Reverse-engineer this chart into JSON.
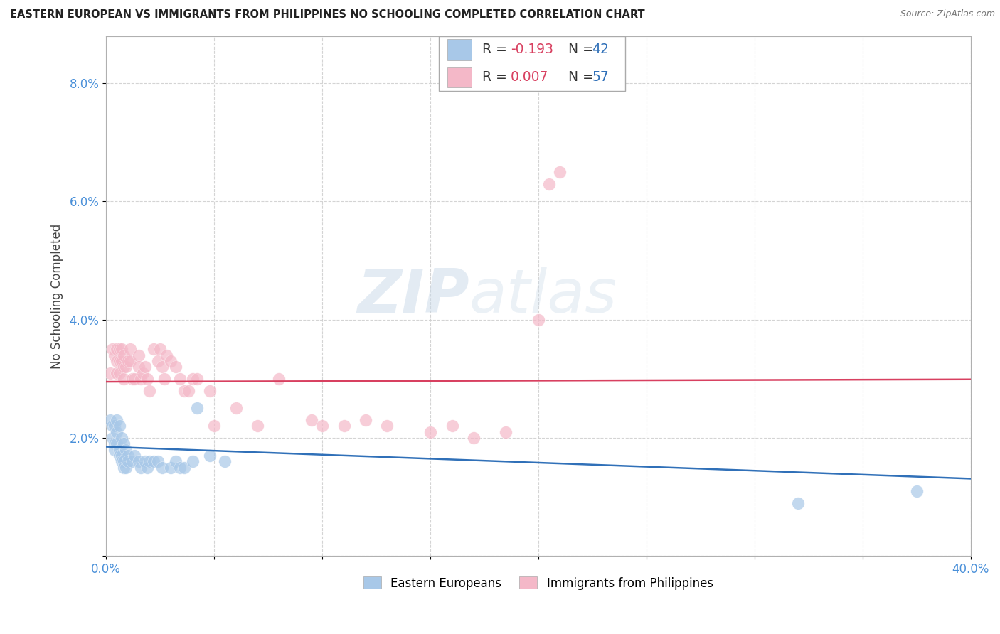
{
  "title": "EASTERN EUROPEAN VS IMMIGRANTS FROM PHILIPPINES NO SCHOOLING COMPLETED CORRELATION CHART",
  "source": "Source: ZipAtlas.com",
  "ylabel": "No Schooling Completed",
  "xlim": [
    0.0,
    0.4
  ],
  "ylim": [
    0.0,
    0.088
  ],
  "xticks": [
    0.0,
    0.05,
    0.1,
    0.15,
    0.2,
    0.25,
    0.3,
    0.35,
    0.4
  ],
  "xtick_labels": [
    "0.0%",
    "",
    "",
    "",
    "",
    "",
    "",
    "",
    "40.0%"
  ],
  "yticks": [
    0.0,
    0.02,
    0.04,
    0.06,
    0.08
  ],
  "ytick_labels": [
    "",
    "2.0%",
    "4.0%",
    "6.0%",
    "8.0%"
  ],
  "blue_color": "#a8c8e8",
  "pink_color": "#f4b8c8",
  "blue_line_color": "#3070b8",
  "pink_line_color": "#d84060",
  "watermark_zip": "ZIP",
  "watermark_atlas": "atlas",
  "background_color": "#ffffff",
  "grid_color": "#d0d0d0",
  "blue_points": [
    [
      0.002,
      0.023
    ],
    [
      0.003,
      0.022
    ],
    [
      0.003,
      0.02
    ],
    [
      0.004,
      0.022
    ],
    [
      0.004,
      0.019
    ],
    [
      0.004,
      0.018
    ],
    [
      0.005,
      0.023
    ],
    [
      0.005,
      0.021
    ],
    [
      0.005,
      0.019
    ],
    [
      0.006,
      0.022
    ],
    [
      0.006,
      0.018
    ],
    [
      0.006,
      0.017
    ],
    [
      0.007,
      0.02
    ],
    [
      0.007,
      0.017
    ],
    [
      0.007,
      0.016
    ],
    [
      0.008,
      0.019
    ],
    [
      0.008,
      0.016
    ],
    [
      0.008,
      0.015
    ],
    [
      0.009,
      0.018
    ],
    [
      0.009,
      0.015
    ],
    [
      0.01,
      0.017
    ],
    [
      0.01,
      0.016
    ],
    [
      0.012,
      0.016
    ],
    [
      0.013,
      0.017
    ],
    [
      0.015,
      0.016
    ],
    [
      0.016,
      0.015
    ],
    [
      0.018,
      0.016
    ],
    [
      0.019,
      0.015
    ],
    [
      0.02,
      0.016
    ],
    [
      0.022,
      0.016
    ],
    [
      0.024,
      0.016
    ],
    [
      0.026,
      0.015
    ],
    [
      0.03,
      0.015
    ],
    [
      0.032,
      0.016
    ],
    [
      0.034,
      0.015
    ],
    [
      0.036,
      0.015
    ],
    [
      0.04,
      0.016
    ],
    [
      0.042,
      0.025
    ],
    [
      0.048,
      0.017
    ],
    [
      0.055,
      0.016
    ],
    [
      0.32,
      0.009
    ],
    [
      0.375,
      0.011
    ]
  ],
  "pink_points": [
    [
      0.002,
      0.031
    ],
    [
      0.003,
      0.035
    ],
    [
      0.004,
      0.034
    ],
    [
      0.005,
      0.035
    ],
    [
      0.005,
      0.033
    ],
    [
      0.005,
      0.031
    ],
    [
      0.006,
      0.035
    ],
    [
      0.006,
      0.033
    ],
    [
      0.006,
      0.031
    ],
    [
      0.007,
      0.035
    ],
    [
      0.007,
      0.033
    ],
    [
      0.008,
      0.034
    ],
    [
      0.008,
      0.032
    ],
    [
      0.008,
      0.03
    ],
    [
      0.009,
      0.032
    ],
    [
      0.01,
      0.033
    ],
    [
      0.011,
      0.035
    ],
    [
      0.011,
      0.033
    ],
    [
      0.012,
      0.03
    ],
    [
      0.013,
      0.03
    ],
    [
      0.015,
      0.034
    ],
    [
      0.015,
      0.032
    ],
    [
      0.016,
      0.03
    ],
    [
      0.017,
      0.031
    ],
    [
      0.018,
      0.032
    ],
    [
      0.019,
      0.03
    ],
    [
      0.02,
      0.028
    ],
    [
      0.022,
      0.035
    ],
    [
      0.024,
      0.033
    ],
    [
      0.025,
      0.035
    ],
    [
      0.026,
      0.032
    ],
    [
      0.027,
      0.03
    ],
    [
      0.028,
      0.034
    ],
    [
      0.03,
      0.033
    ],
    [
      0.032,
      0.032
    ],
    [
      0.034,
      0.03
    ],
    [
      0.036,
      0.028
    ],
    [
      0.038,
      0.028
    ],
    [
      0.04,
      0.03
    ],
    [
      0.042,
      0.03
    ],
    [
      0.048,
      0.028
    ],
    [
      0.05,
      0.022
    ],
    [
      0.06,
      0.025
    ],
    [
      0.07,
      0.022
    ],
    [
      0.08,
      0.03
    ],
    [
      0.095,
      0.023
    ],
    [
      0.1,
      0.022
    ],
    [
      0.11,
      0.022
    ],
    [
      0.12,
      0.023
    ],
    [
      0.13,
      0.022
    ],
    [
      0.15,
      0.021
    ],
    [
      0.16,
      0.022
    ],
    [
      0.17,
      0.02
    ],
    [
      0.185,
      0.021
    ],
    [
      0.2,
      0.04
    ],
    [
      0.205,
      0.063
    ],
    [
      0.21,
      0.065
    ]
  ],
  "blue_intercept": 0.0185,
  "blue_slope": -0.0135,
  "pink_intercept": 0.0295,
  "pink_slope": 0.001
}
